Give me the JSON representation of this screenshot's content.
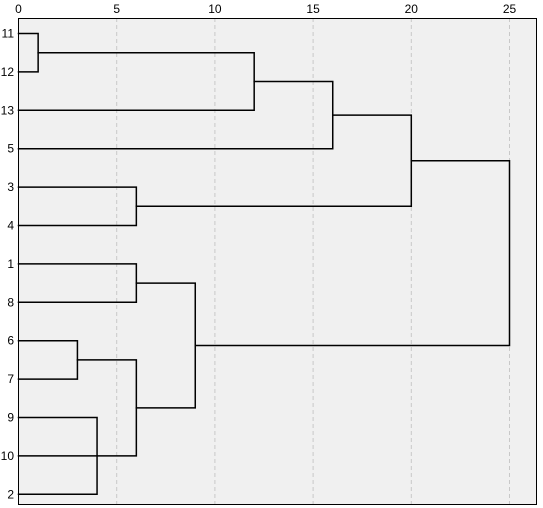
{
  "chart_data": {
    "type": "dendrogram",
    "title": "",
    "xlabel": "",
    "ylabel": "",
    "xlim": [
      0,
      25
    ],
    "x_ticks": [
      0,
      5,
      10,
      15,
      20,
      25
    ],
    "x_tick_labels": [
      "0",
      "5",
      "10",
      "15",
      "20",
      "25"
    ],
    "grid": "vertical dashed",
    "leaves": [
      "11",
      "12",
      "13",
      "5",
      "3",
      "4",
      "1",
      "8",
      "6",
      "7",
      "9",
      "10",
      "2"
    ],
    "merges": [
      {
        "id": "c1",
        "children": [
          "11",
          "12"
        ],
        "height": 1
      },
      {
        "id": "c2",
        "children": [
          "c1",
          "13"
        ],
        "height": 12
      },
      {
        "id": "c3",
        "children": [
          "c2",
          "5"
        ],
        "height": 16
      },
      {
        "id": "c4",
        "children": [
          "3",
          "4"
        ],
        "height": 6
      },
      {
        "id": "c5",
        "children": [
          "c3",
          "c4"
        ],
        "height": 20
      },
      {
        "id": "c6",
        "children": [
          "1",
          "8"
        ],
        "height": 6
      },
      {
        "id": "c7",
        "children": [
          "6",
          "7"
        ],
        "height": 3
      },
      {
        "id": "c8",
        "children": [
          "9",
          "2"
        ],
        "height": 4
      },
      {
        "id": "c9",
        "children": [
          "c7",
          "10",
          "c8"
        ],
        "height": 6
      },
      {
        "id": "c10",
        "children": [
          "c6",
          "c9"
        ],
        "height": 9
      },
      {
        "id": "c11",
        "children": [
          "c5",
          "c10"
        ],
        "height": 25
      }
    ]
  },
  "colors": {
    "plot_background": "#f0f0f0",
    "frame": "#000000",
    "gridline": "#c8c8c8",
    "link": "#000000"
  }
}
